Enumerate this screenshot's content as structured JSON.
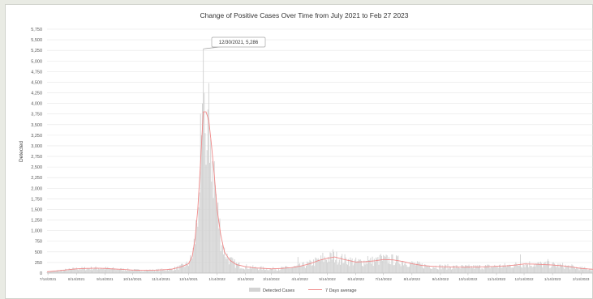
{
  "chart_data": {
    "type": "bar",
    "title": "Change of Positive Cases Over Time from July 2021 to Feb 27 2023",
    "xlabel": "",
    "ylabel": "Detected",
    "ylim": [
      0,
      5750
    ],
    "y_ticks": [
      0,
      250,
      500,
      750,
      1000,
      1250,
      1500,
      1750,
      2000,
      2250,
      2500,
      2750,
      3000,
      3250,
      3500,
      3750,
      4000,
      4250,
      4500,
      4750,
      5000,
      5250,
      5500,
      5750
    ],
    "x_tick_labels": [
      "7/14/2021",
      "8/14/2021",
      "9/14/2021",
      "10/14/2021",
      "11/14/2021",
      "12/14/2021",
      "1/14/2022",
      "2/14/2022",
      "3/14/2022",
      "4/14/2022",
      "5/14/2022",
      "6/14/2022",
      "7/14/2022",
      "8/14/2022",
      "9/14/2022",
      "10/14/2022",
      "11/14/2022",
      "12/14/2022",
      "1/14/2023",
      "2/14/2023"
    ],
    "x_range": [
      "2021-07-13",
      "2023-02-27"
    ],
    "grid": true,
    "legend_position": "bottom",
    "annotation": {
      "text": "12/30/2021, 5,286",
      "x": "2021-12-30",
      "y": 5286
    },
    "series_style": {
      "bars": {
        "name": "Detected Cases",
        "color": "#d3d3d3"
      },
      "line": {
        "name": "7 Days average",
        "color": "#f08a8a"
      }
    },
    "estimated_profile": {
      "unit": "daily detected cases (approximate, read from chart)",
      "points": [
        [
          "2021-07-13",
          30
        ],
        [
          "2021-07-20",
          45
        ],
        [
          "2021-07-27",
          60
        ],
        [
          "2021-08-03",
          75
        ],
        [
          "2021-08-14",
          100
        ],
        [
          "2021-08-25",
          110
        ],
        [
          "2021-09-05",
          115
        ],
        [
          "2021-09-14",
          110
        ],
        [
          "2021-09-25",
          95
        ],
        [
          "2021-10-05",
          85
        ],
        [
          "2021-10-14",
          70
        ],
        [
          "2021-10-25",
          65
        ],
        [
          "2021-11-05",
          65
        ],
        [
          "2021-11-14",
          75
        ],
        [
          "2021-11-25",
          90
        ],
        [
          "2021-12-05",
          140
        ],
        [
          "2021-12-14",
          220
        ],
        [
          "2021-12-18",
          400
        ],
        [
          "2021-12-21",
          800
        ],
        [
          "2021-12-24",
          1500
        ],
        [
          "2021-12-27",
          2600
        ],
        [
          "2021-12-30",
          3800
        ],
        [
          "2022-01-02",
          3800
        ],
        [
          "2022-01-05",
          3600
        ],
        [
          "2022-01-08",
          3000
        ],
        [
          "2022-01-11",
          2300
        ],
        [
          "2022-01-14",
          1500
        ],
        [
          "2022-01-18",
          900
        ],
        [
          "2022-01-22",
          500
        ],
        [
          "2022-01-28",
          300
        ],
        [
          "2022-02-04",
          200
        ],
        [
          "2022-02-14",
          150
        ],
        [
          "2022-02-25",
          120
        ],
        [
          "2022-03-07",
          110
        ],
        [
          "2022-03-14",
          100
        ],
        [
          "2022-03-25",
          110
        ],
        [
          "2022-04-05",
          130
        ],
        [
          "2022-04-14",
          160
        ],
        [
          "2022-04-25",
          220
        ],
        [
          "2022-05-05",
          300
        ],
        [
          "2022-05-14",
          350
        ],
        [
          "2022-05-22",
          380
        ],
        [
          "2022-06-01",
          320
        ],
        [
          "2022-06-14",
          260
        ],
        [
          "2022-06-25",
          270
        ],
        [
          "2022-07-05",
          290
        ],
        [
          "2022-07-14",
          320
        ],
        [
          "2022-07-25",
          310
        ],
        [
          "2022-08-05",
          270
        ],
        [
          "2022-08-14",
          220
        ],
        [
          "2022-08-25",
          180
        ],
        [
          "2022-09-05",
          160
        ],
        [
          "2022-09-14",
          150
        ],
        [
          "2022-09-25",
          145
        ],
        [
          "2022-10-05",
          140
        ],
        [
          "2022-10-14",
          140
        ],
        [
          "2022-10-25",
          145
        ],
        [
          "2022-11-05",
          150
        ],
        [
          "2022-11-14",
          160
        ],
        [
          "2022-11-25",
          170
        ],
        [
          "2022-12-05",
          190
        ],
        [
          "2022-12-14",
          215
        ],
        [
          "2022-12-25",
          210
        ],
        [
          "2023-01-05",
          200
        ],
        [
          "2023-01-14",
          190
        ],
        [
          "2023-01-25",
          170
        ],
        [
          "2023-02-05",
          140
        ],
        [
          "2023-02-14",
          110
        ],
        [
          "2023-02-27",
          90
        ]
      ],
      "spikes": [
        [
          "2021-12-30",
          5286
        ],
        [
          "2021-12-31",
          4250
        ],
        [
          "2021-12-29",
          4000
        ],
        [
          "2022-01-01",
          3300
        ],
        [
          "2022-01-03",
          2900
        ],
        [
          "2021-12-28",
          3250
        ],
        [
          "2021-12-26",
          1900
        ],
        [
          "2022-01-06",
          2600
        ],
        [
          "2022-05-20",
          560
        ],
        [
          "2022-05-09",
          480
        ],
        [
          "2022-07-11",
          450
        ],
        [
          "2022-12-10",
          440
        ],
        [
          "2022-04-12",
          380
        ],
        [
          "2022-06-27",
          400
        ],
        [
          "2023-01-09",
          330
        ]
      ]
    }
  }
}
